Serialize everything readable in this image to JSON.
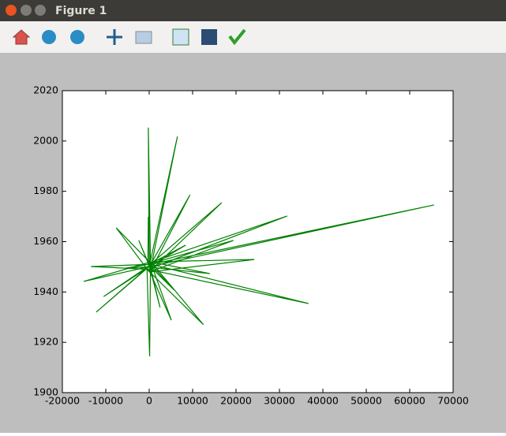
{
  "window": {
    "title": "Figure 1"
  },
  "chart_data": {
    "type": "line",
    "x": [
      0,
      65600,
      500,
      36700,
      -300,
      31800,
      800,
      24200,
      200,
      6500,
      0,
      -200,
      300,
      100,
      -500,
      12500,
      400,
      -15100,
      -200,
      -12200,
      600,
      -7600,
      0,
      16700,
      -400,
      14000,
      300,
      5100,
      -100,
      -13400,
      500,
      -10500,
      0,
      9400,
      200,
      19400,
      -300,
      -200,
      100,
      -2400,
      400,
      2500,
      -200,
      5800,
      300,
      -5300,
      0,
      8400,
      0
    ],
    "series": [
      {
        "color": "#008000",
        "values": [
          1950,
          1974.6,
          1951,
          1935.4,
          1949,
          1970.2,
          1952,
          1952.9,
          1948,
          2001.8,
          1950,
          2005.3,
          1951,
          1914.4,
          1949,
          1927,
          1952,
          1944.2,
          1950,
          1932,
          1951,
          1965.5,
          1948,
          1975.5,
          1950,
          1947.3,
          1952,
          1928.8,
          1949,
          1950.1,
          1951,
          1938.2,
          1950,
          1978.6,
          1948,
          1960.5,
          1951,
          1969.9,
          1950,
          1960.5,
          1949,
          1933.8,
          1952,
          1940.7,
          1950,
          1949.5,
          1951,
          1958.6,
          1950
        ]
      }
    ],
    "xlim": [
      -20000,
      70000
    ],
    "xticks": [
      -20000,
      -10000,
      0,
      10000,
      20000,
      30000,
      40000,
      50000,
      60000,
      70000
    ],
    "ylim": [
      1900,
      2020
    ],
    "yticks": [
      1900,
      1920,
      1940,
      1960,
      1980,
      2000,
      2020
    ],
    "grid": false
  }
}
